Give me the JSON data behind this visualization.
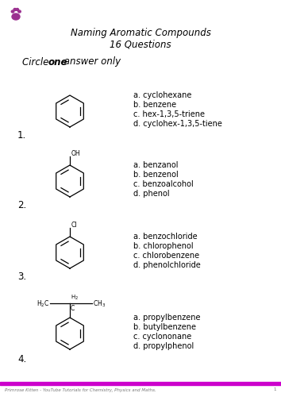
{
  "title_line1": "Naming Aromatic Compounds",
  "title_line2": "16 Questions",
  "bg_color": "#ffffff",
  "paw_color": "#9b3090",
  "bottom_bar_color": "#cc00cc",
  "footer_text": "Primrose Kitten - YouTube Tutorials for Chemistry, Physics and Maths.",
  "footer_page": "1",
  "questions": [
    {
      "number": "1.",
      "choices": [
        "a. cyclohexane",
        "b. benzene",
        "c. hex-1,3,5-triene",
        "d. cyclohex-1,3,5-tiene"
      ]
    },
    {
      "number": "2.",
      "choices": [
        "a. benzanol",
        "b. benzenol",
        "c. benzoalcohol",
        "d. phenol"
      ]
    },
    {
      "number": "3.",
      "choices": [
        "a. benzochloride",
        "b. chlorophenol",
        "c. chlorobenzene",
        "d. phenolchloride"
      ]
    },
    {
      "number": "4.",
      "choices": [
        "a. propylbenzene",
        "b. butylbenzene",
        "c. cyclononane",
        "d. propylphenol"
      ]
    }
  ],
  "fig_width": 3.54,
  "fig_height": 5.0,
  "dpi": 100
}
